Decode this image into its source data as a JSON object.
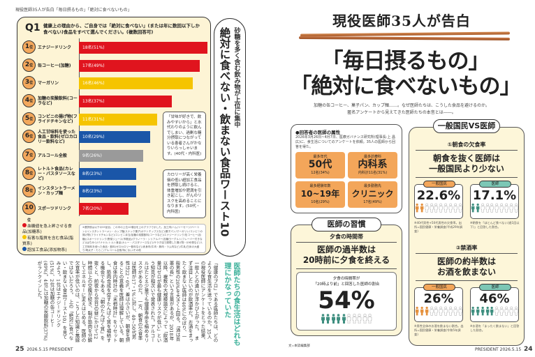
{
  "left_page": {
    "running_header": "現役医師35人が告白「毎日摂るもの」「絶対に食べないもの」",
    "question": {
      "number": "Q1",
      "text": "健康上の理由から、ご自身では「絶対に食べない」(または年に数回以下しか食べない)食品をすべて選んでください。(複数回答可)"
    },
    "rank_suffix": "位",
    "side_panel": {
      "subtitle": "砂糖を多く含む飲み物が上位に集中",
      "title": "絶対に食べない・飲まない食品ワースト10"
    },
    "callouts": [
      "「甘味が好きで、飲みやすいから」と水代わりのように飲んでしまい、過剰な糖分摂取につながっている患者さんがかなりいらっしゃいます。(40代・内科医)",
      "カロリーが高く栄養価の低い超加工食品を摂取し続けると、体重増加や肥満を引き起こし、がんのリスクを高めることになります。(50代・内科医)"
    ],
    "legend": [
      {
        "label": "血糖値を急上昇させる食品(加糖系)",
        "color": "#e0141e"
      },
      {
        "label": "有害な脂質を含む食品(脂質系)",
        "color": "#f5c400"
      },
      {
        "label": "超加工食品(添加物系)",
        "color": "#1a56a8"
      }
    ],
    "footnote": "※選択肢は以下の35品目。この中の上位10項目を上のグラフで示した。加工肉(ハム/ソーセージ/ベーコン)/インスタントラーメン・カップ麺/スナック菓子(ポテトチップスなど)/菓子パン/マーガリン/コンビニの揚げ物(フライドチキンなど)/コンビニ弁当/加糖の炭酸飲料(コーラなど)/エナジードリンク/缶コーヒー(加糖)/スポーツドリンク/野菜ジュース(市販品)/グラノーラ・シリアルバー/加糖ヨーグルト(フレーバー付きなど)/はちみつ/バナナ/レトルト食品(カレー・パスタソースなど)/サラダ油で調理した揚げ物・炒め物など/人工甘味料を使った食品・飲料(ゼロカロリー飲料など)/赤身肉(牛肉・豚肉・ラム肉など)/牛乳/白米の大盛り/明太子・たらこ/アルコール全般/特にない/その他",
    "article_headline": "医師たちの食生活はどれも理にかなっていた",
    "article_body": "「健康のプロ」である医師たちは、どのような食生活を送っているのか。35人の現役医師にアンケートをとった結果、一般人との違いが浮かび上がった。　まず注目したいのが飲酒率だ。お酒をまったく飲まない医師は46%にのぼり、一般男性の26%を大きく上回る。「酒は百薬の長」という言葉があるが、2018年以降、複数の大規模論文によって「飲酒量はゼロが最も健康リスクが低い」という知見が相次いで発表された。アルコールはたとえ少量でも健康寿命を縮めるリスクがあるのだ。　一方、朝食の欠食率は医師が17・1%に対し、40~50代男性は22・6%。差は小さいが、朝食を摂ることの意義を医師は理解している。朝食は体内時計の「末梢時計」をリセットし、筋肉合成を促すたんぱく質を補給する機会でもある。「朝のたんぱく質」を抜くと、前夜から翌日の昼にかけて12時間以上の空腹が続き、脳が筋肉を分解してエネルギーに変えはじめる。医師の欠食率が低いのは、こうした知識と無縁ではないだろう。　上の「絶対に食べない・飲まない食品ワースト10」を見てみよう。1位はエナジードリンク(51%)、2位は加糖の缶コーヒー(49%)。4位には加糖の炭酸飲料(37%)がランクインした。",
    "footer": {
      "page": "25",
      "issue": "2026.5.15 PRESIDENT"
    }
  },
  "chart_data": {
    "type": "bar",
    "orientation": "horizontal",
    "title": "絶対に食べない・飲まない食品ワースト10",
    "categories": [
      "エナジードリンク",
      "缶コーヒー(加糖)",
      "マーガリン",
      "加糖の炭酸飲料(コーラなど)",
      "コンビニの揚げ物(フライドチキンなど)",
      "人工甘味料を使った食品・飲料(ゼロカロリー飲料など)",
      "アルコール全般",
      "レトルト食品(カレー・パスタソースなど)",
      "インスタントラーメン・カップ麺",
      "スポーツドリンク"
    ],
    "ranks": [
      "1",
      "2",
      "3",
      "4",
      "5",
      "6",
      "7",
      "8",
      "8",
      "10"
    ],
    "values": [
      18,
      17,
      16,
      13,
      11,
      10,
      9,
      8,
      8,
      7
    ],
    "labels": [
      "18名(51%)",
      "17名(49%)",
      "16名(46%)",
      "13名(37%)",
      "11名(31%)",
      "10名(29%)",
      "9名(26%)",
      "8名(23%)",
      "8名(23%)",
      "7名(20%)"
    ],
    "colors": [
      "#e0141e",
      "#e0141e",
      "#f5c400",
      "#e0141e",
      "#f5c400",
      "#1a56a8",
      "#9a9a9a",
      "#1a56a8",
      "#1a56a8",
      "#e0141e"
    ],
    "xlim": [
      0,
      18
    ]
  },
  "right_page": {
    "kicker": "現役医師35人が告白",
    "title_lines": [
      "「毎日摂るもの」",
      "「絶対に食べないもの」"
    ],
    "lead_lines": [
      "加糖の缶コーヒー、菓子パン、カップ麺……。なぜ医師たちは、こうした食品を避けるのか。",
      "匿名アンケートから見えてきた医師たちの本音とは――。"
    ],
    "attributes": {
      "heading": "●回答者の医師の属性",
      "text": "2026年3月26日~4月7日、医療ガバナンス研究所(理事長:上 昌広)に、食生活についてのアンケートを依頼。35人の医師から回答を得た。",
      "cards": [
        {
          "key": "最多年代",
          "value": "50代",
          "note": "12名(34%)"
        },
        {
          "key": "最多診療科",
          "value": "内科系",
          "note": "内科計11名(31%)"
        },
        {
          "key": "最多経験年数",
          "value": "10~19年",
          "note": "10名(29%)"
        },
        {
          "key": "最多勤務先",
          "value": "クリニック",
          "note": "17名(49%)"
        }
      ]
    },
    "vs": {
      "pill": "一般国民VS医師",
      "sections": [
        {
          "sub": "①朝食の欠食率",
          "headline": [
            "朝食を抜く医師は",
            "一般国民より少ない"
          ],
          "stats": [
            {
              "tag": "一般国民",
              "pct_label": "22.6%",
              "pct": 22.6,
              "color": "#e5923f",
              "note": "※40代男性+50代男性の欠食率。出所=国民健康・栄養調査(平成29年調査)"
            },
            {
              "tag": "医師",
              "pct_label": "17.1%",
              "pct": 17.1,
              "color": "#3f8f80",
              "note": "※朝食を「ほとんど食べない(週1回以下)」と回答した割合。"
            }
          ]
        },
        {
          "sub": "②禁酒率",
          "headline": [
            "医師の約半数は",
            "お酒を飲まない"
          ],
          "stats": [
            {
              "tag": "一般国民",
              "pct_label": "26%",
              "pct": 26,
              "color": "#e5923f",
              "note": "※男性全体のお酒を飲まない割合。出所=国民健康・栄養調査(令和5年調査)"
            },
            {
              "tag": "医師",
              "pct_label": "46%",
              "pct": 46,
              "color": "#3f8f80",
              "note": "※お酒を「まったく飲まない」と回答した割合。"
            }
          ]
        }
      ]
    },
    "habit": {
      "pill": "医師の習慣",
      "sub": "夕食の時間帯",
      "headline": [
        "医師の過半数は",
        "20時前に夕食を終える"
      ],
      "caption": [
        "夕食の時間帯が",
        "「20時より前」と回答した医師の割合"
      ],
      "pct_label": "54%",
      "pct": 54,
      "color": "#3f8f80"
    },
    "credit": "文=本誌編集部",
    "footer": {
      "issue": "PRESIDENT 2026.5.15",
      "page": "24"
    },
    "tag_colors": {
      "general": "#f3a65a",
      "doctor": "#7cc7b5"
    }
  }
}
